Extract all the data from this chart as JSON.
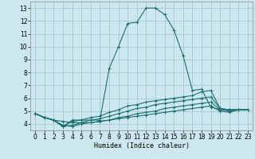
{
  "xlabel": "Humidex (Indice chaleur)",
  "ylabel": "",
  "bg_color": "#cce8ee",
  "grid_color": "#aaccd4",
  "line_color": "#1a7070",
  "xlim": [
    -0.5,
    23.5
  ],
  "ylim": [
    3.5,
    13.5
  ],
  "xticks": [
    0,
    1,
    2,
    3,
    4,
    5,
    6,
    7,
    8,
    9,
    10,
    11,
    12,
    13,
    14,
    15,
    16,
    17,
    18,
    19,
    20,
    21,
    22,
    23
  ],
  "yticks": [
    4,
    5,
    6,
    7,
    8,
    9,
    10,
    11,
    12,
    13
  ],
  "series": [
    [
      4.8,
      4.5,
      4.3,
      3.8,
      4.3,
      4.3,
      4.3,
      4.3,
      8.3,
      10.0,
      11.8,
      11.9,
      13.0,
      13.0,
      12.5,
      11.3,
      9.3,
      6.6,
      6.7,
      5.3,
      5.1,
      5.1,
      5.1,
      5.1
    ],
    [
      4.8,
      4.5,
      4.3,
      3.8,
      4.2,
      4.3,
      4.5,
      4.6,
      4.9,
      5.1,
      5.4,
      5.5,
      5.7,
      5.8,
      5.9,
      6.0,
      6.1,
      6.2,
      6.5,
      6.6,
      5.2,
      5.1,
      5.1,
      5.1
    ],
    [
      4.8,
      4.5,
      4.3,
      3.8,
      3.9,
      4.1,
      4.3,
      4.4,
      4.6,
      4.8,
      5.0,
      5.2,
      5.3,
      5.5,
      5.6,
      5.7,
      5.8,
      5.9,
      6.0,
      6.1,
      5.2,
      5.1,
      5.1,
      5.1
    ],
    [
      4.8,
      4.5,
      4.3,
      3.9,
      3.8,
      4.0,
      4.1,
      4.2,
      4.3,
      4.5,
      4.6,
      4.8,
      4.9,
      5.0,
      5.2,
      5.3,
      5.4,
      5.5,
      5.6,
      5.7,
      5.1,
      5.0,
      5.1,
      5.1
    ],
    [
      4.8,
      4.5,
      4.3,
      4.2,
      4.1,
      4.1,
      4.1,
      4.2,
      4.3,
      4.4,
      4.5,
      4.6,
      4.7,
      4.8,
      4.9,
      5.0,
      5.1,
      5.2,
      5.3,
      5.4,
      5.0,
      4.9,
      5.1,
      5.1
    ]
  ]
}
